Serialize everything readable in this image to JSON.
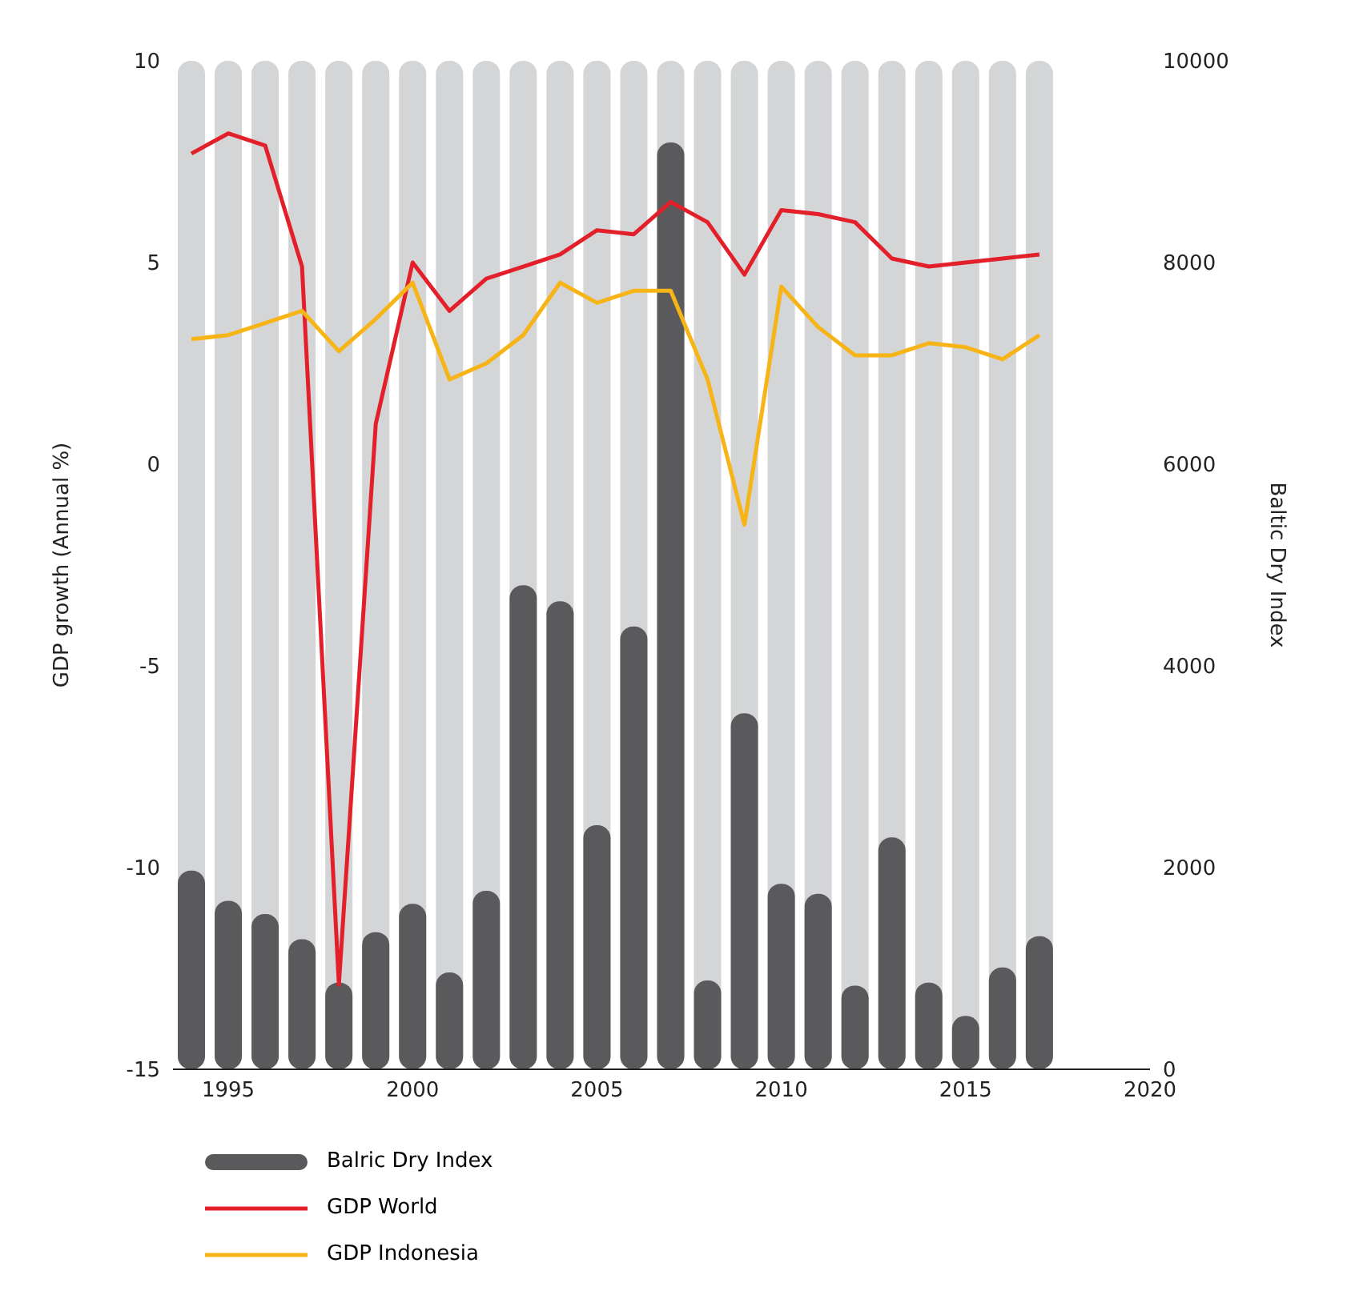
{
  "chart_data": {
    "type": "bar",
    "x": [
      1994,
      1995,
      1996,
      1997,
      1998,
      1999,
      2000,
      2001,
      2002,
      2003,
      2004,
      2005,
      2006,
      2007,
      2008,
      2009,
      2010,
      2011,
      2012,
      2013,
      2014,
      2015,
      2016,
      2017
    ],
    "series": [
      {
        "name": "Balric Dry Index",
        "axis": "y2",
        "color": "#5a5a5c",
        "values": [
          1970,
          1670,
          1540,
          1290,
          860,
          1360,
          1640,
          960,
          1770,
          4800,
          4640,
          2420,
          4390,
          9190,
          880,
          3530,
          1840,
          1740,
          830,
          2300,
          860,
          530,
          1010,
          1320
        ]
      },
      {
        "name": "GDP World",
        "type": "line",
        "axis": "y",
        "color": "#e3202a",
        "values": [
          7.7,
          8.2,
          7.9,
          4.9,
          -12.9,
          1.0,
          5.0,
          3.8,
          4.6,
          4.9,
          5.2,
          5.8,
          5.7,
          6.5,
          6.0,
          4.7,
          6.3,
          6.2,
          6.0,
          5.1,
          4.9,
          5.0,
          5.1,
          5.2
        ]
      },
      {
        "name": "GDP Indonesia",
        "type": "line",
        "axis": "y",
        "color": "#f7b416",
        "values": [
          3.1,
          3.2,
          3.5,
          3.8,
          2.8,
          3.6,
          4.5,
          2.1,
          2.5,
          3.2,
          4.5,
          4.0,
          4.3,
          4.3,
          2.1,
          -1.5,
          4.4,
          3.4,
          2.7,
          2.7,
          3.0,
          2.9,
          2.6,
          3.2
        ]
      }
    ],
    "xlim": [
      1993.5,
      2020
    ],
    "xticks": [
      1995,
      2000,
      2005,
      2010,
      2015,
      2020
    ],
    "ylim": [
      -15,
      10
    ],
    "yticks": [
      -15,
      -10,
      -5,
      0,
      5,
      10
    ],
    "y2lim": [
      0,
      10000
    ],
    "y2ticks": [
      0,
      2000,
      4000,
      6000,
      8000,
      10000
    ],
    "ylabel": "GDP growth (Annual %)",
    "y2label": "Baltic Dry Index",
    "grid": false,
    "legend": "bottom left",
    "marker": "none",
    "line_style": "solid"
  }
}
